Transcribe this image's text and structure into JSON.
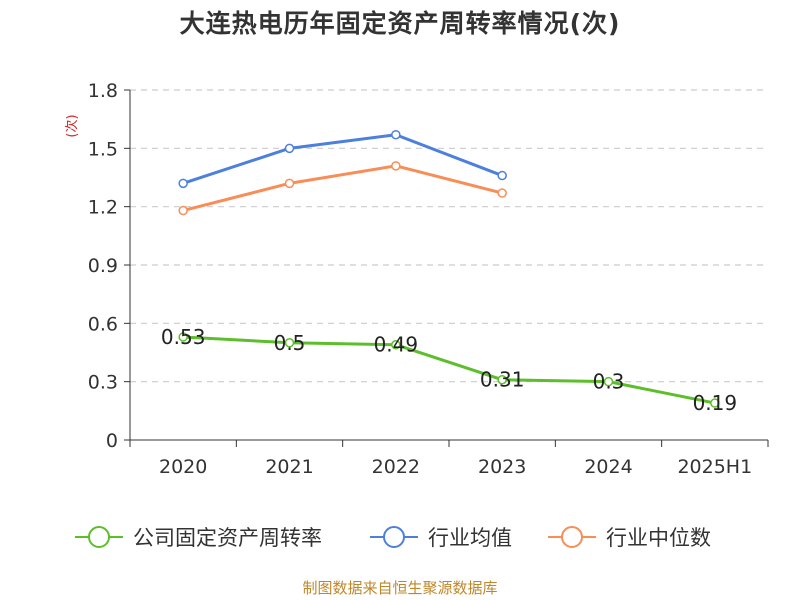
{
  "title": "大连热电历年固定资产周转率情况(次)",
  "source": "制图数据来自恒生聚源数据库",
  "colors": {
    "company": "#5dbe2c",
    "industry_avg": "#4d7fdd",
    "industry_median": "#f88d57",
    "grid": "#cccccc",
    "axis": "#333333",
    "unit": "#d42424"
  },
  "chart_data": {
    "type": "line",
    "title": "大连热电历年固定资产周转率情况(次)",
    "ylabel": "(次)",
    "xlabel": "",
    "categories": [
      "2020",
      "2021",
      "2022",
      "2023",
      "2024",
      "2025H1"
    ],
    "ylim": [
      0,
      1.8
    ],
    "yticks": [
      "0",
      "0.3",
      "0.6",
      "0.9",
      "1.2",
      "1.5",
      "1.8"
    ],
    "grid": true,
    "legend_position": "bottom",
    "series": [
      {
        "name": "公司固定资产周转率",
        "color": "#5dbe2c",
        "values": [
          0.53,
          0.5,
          0.49,
          0.31,
          0.3,
          0.19
        ],
        "labels": [
          "0.53",
          "0.5",
          "0.49",
          "0.31",
          "0.3",
          "0.19"
        ]
      },
      {
        "name": "行业均值",
        "color": "#4d7fdd",
        "values": [
          1.32,
          1.5,
          1.57,
          1.36,
          null,
          null
        ]
      },
      {
        "name": "行业中位数",
        "color": "#f88d57",
        "values": [
          1.18,
          1.32,
          1.41,
          1.27,
          null,
          null
        ]
      }
    ]
  }
}
